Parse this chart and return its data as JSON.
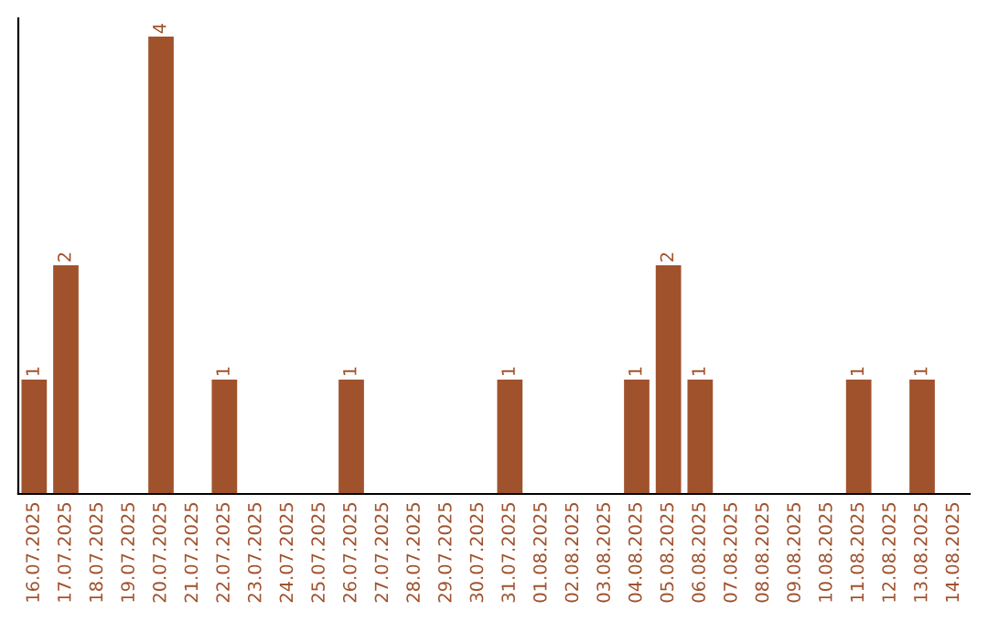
{
  "chart_data": {
    "type": "bar",
    "categories": [
      "16.07.2025",
      "17.07.2025",
      "18.07.2025",
      "19.07.2025",
      "20.07.2025",
      "21.07.2025",
      "22.07.2025",
      "23.07.2025",
      "24.07.2025",
      "25.07.2025",
      "26.07.2025",
      "27.07.2025",
      "28.07.2025",
      "29.07.2025",
      "30.07.2025",
      "31.07.2025",
      "01.08.2025",
      "02.08.2025",
      "03.08.2025",
      "04.08.2025",
      "05.08.2025",
      "06.08.2025",
      "07.08.2025",
      "08.08.2025",
      "09.08.2025",
      "10.08.2025",
      "11.08.2025",
      "12.08.2025",
      "13.08.2025",
      "14.08.2025"
    ],
    "values": [
      1,
      2,
      0,
      0,
      4,
      0,
      1,
      0,
      0,
      0,
      1,
      0,
      0,
      0,
      0,
      1,
      0,
      0,
      0,
      1,
      2,
      1,
      0,
      0,
      0,
      0,
      1,
      0,
      1,
      0
    ],
    "value_labels": [
      "1",
      "2",
      null,
      null,
      "4",
      null,
      "1",
      null,
      null,
      null,
      "1",
      null,
      null,
      null,
      null,
      "1",
      null,
      null,
      null,
      "1",
      "2",
      "1",
      null,
      null,
      null,
      null,
      "1",
      null,
      "1",
      null
    ],
    "color": "#a0522d",
    "tick_labels": "x",
    "grid": false,
    "legend": false
  }
}
